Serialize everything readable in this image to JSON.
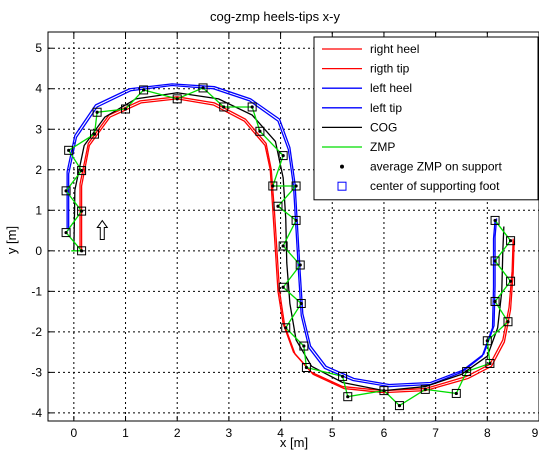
{
  "chart_data": {
    "type": "line",
    "title": "cog-zmp heels-tips x-y",
    "xlabel": "x [m]",
    "ylabel": "y [m]",
    "xlim": [
      -0.5,
      9.0
    ],
    "ylim": [
      -4.2,
      5.4
    ],
    "xticks": [
      0,
      1,
      2,
      3,
      4,
      5,
      6,
      7,
      8,
      9
    ],
    "xtick_labels": [
      "0",
      "1",
      "2",
      "3",
      "4",
      "5",
      "6",
      "7",
      "8",
      "9"
    ],
    "yticks": [
      -4,
      -3,
      -2,
      -1,
      0,
      1,
      2,
      3,
      4,
      5
    ],
    "ytick_labels": [
      "-4",
      "-3",
      "-2",
      "-1",
      "0",
      "1",
      "2",
      "3",
      "4",
      "5"
    ],
    "grid": true,
    "legend_position": "top-right",
    "series": [
      {
        "name": "right heel",
        "color": "#ff0000",
        "points": [
          [
            0.15,
            0
          ],
          [
            0.15,
            1.6
          ],
          [
            0.3,
            2.6
          ],
          [
            0.7,
            3.3
          ],
          [
            1.3,
            3.65
          ],
          [
            2.0,
            3.75
          ],
          [
            2.7,
            3.6
          ],
          [
            3.3,
            3.2
          ],
          [
            3.7,
            2.6
          ],
          [
            3.8,
            2
          ],
          [
            3.85,
            1
          ],
          [
            3.9,
            0
          ],
          [
            3.95,
            -1
          ],
          [
            4.05,
            -1.8
          ],
          [
            4.25,
            -2.5
          ],
          [
            4.6,
            -3.0
          ],
          [
            5.2,
            -3.35
          ],
          [
            6.0,
            -3.45
          ],
          [
            6.8,
            -3.4
          ],
          [
            7.6,
            -3.1
          ],
          [
            8.05,
            -2.8
          ],
          [
            8.3,
            -2.2
          ],
          [
            8.42,
            -1.4
          ],
          [
            8.48,
            -0.5
          ],
          [
            8.5,
            0.3
          ]
        ]
      },
      {
        "name": "rigth tip",
        "color": "#ff0000",
        "points": [
          [
            0.12,
            0.05
          ],
          [
            0.12,
            1.65
          ],
          [
            0.28,
            2.65
          ],
          [
            0.68,
            3.35
          ],
          [
            1.28,
            3.7
          ],
          [
            2.0,
            3.8
          ],
          [
            2.72,
            3.65
          ],
          [
            3.32,
            3.25
          ],
          [
            3.72,
            2.65
          ],
          [
            3.82,
            2
          ],
          [
            3.88,
            1
          ],
          [
            3.93,
            0
          ],
          [
            3.98,
            -1
          ],
          [
            4.08,
            -1.85
          ],
          [
            4.28,
            -2.55
          ],
          [
            4.63,
            -3.05
          ],
          [
            5.23,
            -3.4
          ],
          [
            6.0,
            -3.5
          ],
          [
            6.8,
            -3.45
          ],
          [
            7.63,
            -3.15
          ],
          [
            8.08,
            -2.85
          ],
          [
            8.33,
            -2.25
          ],
          [
            8.45,
            -1.45
          ],
          [
            8.5,
            -0.55
          ],
          [
            8.52,
            0.25
          ]
        ]
      },
      {
        "name": "left heel",
        "color": "#0000ff",
        "points": [
          [
            -0.1,
            0.5
          ],
          [
            -0.1,
            1.9
          ],
          [
            0.05,
            2.8
          ],
          [
            0.45,
            3.55
          ],
          [
            1.1,
            3.95
          ],
          [
            1.9,
            4.08
          ],
          [
            2.7,
            4.0
          ],
          [
            3.4,
            3.7
          ],
          [
            3.95,
            3.2
          ],
          [
            4.15,
            2.5
          ],
          [
            4.25,
            1.6
          ],
          [
            4.3,
            0.5
          ],
          [
            4.35,
            -0.6
          ],
          [
            4.4,
            -1.6
          ],
          [
            4.55,
            -2.4
          ],
          [
            4.85,
            -2.9
          ],
          [
            5.4,
            -3.2
          ],
          [
            6.1,
            -3.35
          ],
          [
            6.9,
            -3.3
          ],
          [
            7.5,
            -3.0
          ],
          [
            7.9,
            -2.6
          ],
          [
            8.1,
            -1.9
          ],
          [
            8.12,
            -0.9
          ],
          [
            8.12,
            0.3
          ],
          [
            8.15,
            0.75
          ]
        ]
      },
      {
        "name": "left tip",
        "color": "#0000ff",
        "points": [
          [
            -0.13,
            0.55
          ],
          [
            -0.13,
            1.95
          ],
          [
            0.02,
            2.85
          ],
          [
            0.42,
            3.6
          ],
          [
            1.08,
            4.0
          ],
          [
            1.9,
            4.12
          ],
          [
            2.72,
            4.05
          ],
          [
            3.42,
            3.75
          ],
          [
            3.98,
            3.25
          ],
          [
            4.18,
            2.55
          ],
          [
            4.28,
            1.65
          ],
          [
            4.33,
            0.55
          ],
          [
            4.38,
            -0.55
          ],
          [
            4.43,
            -1.55
          ],
          [
            4.58,
            -2.35
          ],
          [
            4.88,
            -2.85
          ],
          [
            5.42,
            -3.15
          ],
          [
            6.1,
            -3.3
          ],
          [
            6.9,
            -3.25
          ],
          [
            7.52,
            -2.95
          ],
          [
            7.93,
            -2.55
          ],
          [
            8.13,
            -1.85
          ],
          [
            8.15,
            -0.85
          ],
          [
            8.15,
            0.35
          ],
          [
            8.18,
            0.8
          ]
        ]
      },
      {
        "name": "COG",
        "color": "#000000",
        "points": [
          [
            0.0,
            0.0
          ],
          [
            0.02,
            1.5
          ],
          [
            0.2,
            2.6
          ],
          [
            0.6,
            3.3
          ],
          [
            1.2,
            3.75
          ],
          [
            2.0,
            3.9
          ],
          [
            2.8,
            3.75
          ],
          [
            3.45,
            3.35
          ],
          [
            3.9,
            2.7
          ],
          [
            4.05,
            1.8
          ],
          [
            4.1,
            0.8
          ],
          [
            4.12,
            -0.3
          ],
          [
            4.18,
            -1.3
          ],
          [
            4.3,
            -2.2
          ],
          [
            4.6,
            -2.85
          ],
          [
            5.2,
            -3.25
          ],
          [
            6.0,
            -3.45
          ],
          [
            6.8,
            -3.35
          ],
          [
            7.5,
            -3.05
          ],
          [
            8.0,
            -2.6
          ],
          [
            8.2,
            -1.9
          ],
          [
            8.28,
            -1.0
          ],
          [
            8.3,
            0.0
          ],
          [
            8.32,
            0.6
          ]
        ]
      },
      {
        "name": "ZMP",
        "color": "#00dd00",
        "points": [
          [
            -0.05,
            0.0
          ],
          [
            0.15,
            0.0
          ],
          [
            -0.15,
            0.45
          ],
          [
            0.15,
            0.98
          ],
          [
            -0.15,
            1.48
          ],
          [
            0.15,
            1.98
          ],
          [
            -0.1,
            2.48
          ],
          [
            0.4,
            2.88
          ],
          [
            0.45,
            3.42
          ],
          [
            1.0,
            3.5
          ],
          [
            1.35,
            3.97
          ],
          [
            2.0,
            3.75
          ],
          [
            2.5,
            4.02
          ],
          [
            2.9,
            3.55
          ],
          [
            3.45,
            3.55
          ],
          [
            3.6,
            2.95
          ],
          [
            4.05,
            2.35
          ],
          [
            3.85,
            1.6
          ],
          [
            4.3,
            1.6
          ],
          [
            3.95,
            1.1
          ],
          [
            4.3,
            0.75
          ],
          [
            4.05,
            0.12
          ],
          [
            4.38,
            -0.35
          ],
          [
            4.05,
            -0.9
          ],
          [
            4.4,
            -1.3
          ],
          [
            4.1,
            -1.9
          ],
          [
            4.45,
            -2.35
          ],
          [
            4.5,
            -2.88
          ],
          [
            5.2,
            -3.1
          ],
          [
            5.3,
            -3.6
          ],
          [
            6.0,
            -3.45
          ],
          [
            6.3,
            -3.82
          ],
          [
            6.8,
            -3.42
          ],
          [
            7.4,
            -3.52
          ],
          [
            7.6,
            -2.98
          ],
          [
            8.05,
            -2.78
          ],
          [
            8.0,
            -2.22
          ],
          [
            8.4,
            -1.75
          ],
          [
            8.15,
            -1.25
          ],
          [
            8.45,
            -0.75
          ],
          [
            8.15,
            -0.25
          ],
          [
            8.45,
            0.25
          ],
          [
            8.15,
            0.75
          ]
        ]
      }
    ],
    "markers": [
      {
        "name": "average ZMP on support",
        "color": "#000000",
        "points": [
          [
            0.15,
            0.0
          ],
          [
            -0.15,
            0.45
          ],
          [
            0.15,
            0.98
          ],
          [
            -0.15,
            1.48
          ],
          [
            0.15,
            1.98
          ],
          [
            -0.1,
            2.48
          ],
          [
            0.4,
            2.88
          ],
          [
            0.45,
            3.42
          ],
          [
            1.0,
            3.5
          ],
          [
            1.35,
            3.97
          ],
          [
            2.0,
            3.75
          ],
          [
            2.5,
            4.02
          ],
          [
            2.9,
            3.55
          ],
          [
            3.45,
            3.55
          ],
          [
            3.6,
            2.95
          ],
          [
            4.05,
            2.35
          ],
          [
            3.85,
            1.6
          ],
          [
            4.3,
            1.6
          ],
          [
            3.95,
            1.1
          ],
          [
            4.3,
            0.75
          ],
          [
            4.05,
            0.12
          ],
          [
            4.38,
            -0.35
          ],
          [
            4.05,
            -0.9
          ],
          [
            4.4,
            -1.3
          ],
          [
            4.1,
            -1.9
          ],
          [
            4.45,
            -2.35
          ],
          [
            4.5,
            -2.88
          ],
          [
            5.2,
            -3.1
          ],
          [
            5.3,
            -3.6
          ],
          [
            6.0,
            -3.45
          ],
          [
            6.3,
            -3.82
          ],
          [
            6.8,
            -3.42
          ],
          [
            7.4,
            -3.52
          ],
          [
            7.6,
            -2.98
          ],
          [
            8.05,
            -2.78
          ],
          [
            8.0,
            -2.22
          ],
          [
            8.4,
            -1.75
          ],
          [
            8.15,
            -1.25
          ],
          [
            8.45,
            -0.75
          ],
          [
            8.15,
            -0.25
          ],
          [
            8.45,
            0.25
          ],
          [
            8.15,
            0.75
          ]
        ]
      },
      {
        "name": "center of supporting foot",
        "color": "#0000ff",
        "points": [
          [
            0.15,
            0.0
          ],
          [
            -0.15,
            0.45
          ],
          [
            0.15,
            0.98
          ],
          [
            -0.15,
            1.48
          ],
          [
            0.15,
            1.98
          ],
          [
            -0.1,
            2.48
          ],
          [
            0.4,
            2.88
          ],
          [
            0.45,
            3.42
          ],
          [
            1.0,
            3.5
          ],
          [
            1.35,
            3.97
          ],
          [
            2.0,
            3.75
          ],
          [
            2.5,
            4.02
          ],
          [
            2.9,
            3.55
          ],
          [
            3.45,
            3.55
          ],
          [
            3.6,
            2.95
          ],
          [
            4.05,
            2.35
          ],
          [
            3.85,
            1.6
          ],
          [
            4.3,
            1.6
          ],
          [
            3.95,
            1.1
          ],
          [
            4.3,
            0.75
          ],
          [
            4.05,
            0.12
          ],
          [
            4.38,
            -0.35
          ],
          [
            4.05,
            -0.9
          ],
          [
            4.4,
            -1.3
          ],
          [
            4.1,
            -1.9
          ],
          [
            4.45,
            -2.35
          ],
          [
            4.5,
            -2.88
          ],
          [
            5.2,
            -3.1
          ],
          [
            5.3,
            -3.6
          ],
          [
            6.0,
            -3.45
          ],
          [
            6.3,
            -3.82
          ],
          [
            6.8,
            -3.42
          ],
          [
            7.4,
            -3.52
          ],
          [
            7.6,
            -2.98
          ],
          [
            8.05,
            -2.78
          ],
          [
            8.0,
            -2.22
          ],
          [
            8.4,
            -1.75
          ],
          [
            8.15,
            -1.25
          ],
          [
            8.45,
            -0.75
          ],
          [
            8.15,
            -0.25
          ],
          [
            8.45,
            0.25
          ],
          [
            8.15,
            0.75
          ]
        ]
      }
    ],
    "annotations": [
      {
        "type": "arrow-up",
        "x": 0.55,
        "y": 0.5
      }
    ],
    "legend": [
      {
        "label": "right heel",
        "style": "line",
        "color": "#ff0000"
      },
      {
        "label": "rigth tip",
        "style": "line",
        "color": "#ff0000"
      },
      {
        "label": "left heel",
        "style": "line",
        "color": "#0000ff"
      },
      {
        "label": "left tip",
        "style": "line",
        "color": "#0000ff"
      },
      {
        "label": "COG",
        "style": "line",
        "color": "#000000"
      },
      {
        "label": "ZMP",
        "style": "line",
        "color": "#00dd00"
      },
      {
        "label": "average ZMP on support",
        "style": "dot",
        "color": "#000000"
      },
      {
        "label": "center of supporting foot",
        "style": "square",
        "color": "#0000ff"
      }
    ]
  }
}
